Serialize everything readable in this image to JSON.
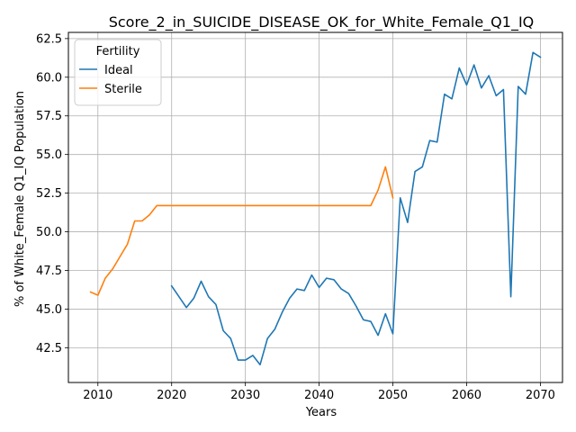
{
  "chart_data": {
    "type": "line",
    "title": "Score_2_in_SUICIDE_DISEASE_OK_for_White_Female_Q1_IQ",
    "xlabel": "Years",
    "ylabel": "% of White_Female Q1_IQ Population",
    "xlim": [
      2006,
      2073
    ],
    "ylim": [
      40.25,
      62.9
    ],
    "xticks": [
      2010,
      2020,
      2030,
      2040,
      2050,
      2060,
      2070
    ],
    "xtick_labels": [
      "2010",
      "2020",
      "2030",
      "2040",
      "2050",
      "2060",
      "2070"
    ],
    "yticks": [
      42.5,
      45.0,
      47.5,
      50.0,
      52.5,
      55.0,
      57.5,
      60.0,
      62.5
    ],
    "ytick_labels": [
      "42.5",
      "45.0",
      "47.5",
      "50.0",
      "52.5",
      "55.0",
      "57.5",
      "60.0",
      "62.5"
    ],
    "grid": true,
    "legend": {
      "title": "Fertility",
      "placement": "top-left"
    },
    "series": [
      {
        "name": "Ideal",
        "color": "#1f77b4",
        "x": [
          2020,
          2021,
          2022,
          2023,
          2024,
          2025,
          2026,
          2027,
          2028,
          2029,
          2030,
          2031,
          2032,
          2033,
          2034,
          2035,
          2036,
          2037,
          2038,
          2039,
          2040,
          2041,
          2042,
          2043,
          2044,
          2045,
          2046,
          2047,
          2048,
          2049,
          2050,
          2051,
          2052,
          2053,
          2054,
          2055,
          2056,
          2057,
          2058,
          2059,
          2060,
          2061,
          2062,
          2063,
          2064,
          2065,
          2066,
          2067,
          2068,
          2069,
          2070
        ],
        "y": [
          46.5,
          45.8,
          45.1,
          45.7,
          46.8,
          45.8,
          45.3,
          43.6,
          43.1,
          41.7,
          41.7,
          42.0,
          41.4,
          43.1,
          43.7,
          44.8,
          45.7,
          46.3,
          46.2,
          47.2,
          46.4,
          47.0,
          46.9,
          46.3,
          46.0,
          45.2,
          44.3,
          44.2,
          43.3,
          44.7,
          43.4,
          52.2,
          50.6,
          53.9,
          54.2,
          55.9,
          55.8,
          58.9,
          58.6,
          60.6,
          59.5,
          60.8,
          59.3,
          60.1,
          58.8,
          59.2,
          45.8,
          59.4,
          58.9,
          61.6,
          61.3
        ]
      },
      {
        "name": "Sterile",
        "color": "#ff7f0e",
        "x": [
          2009,
          2010,
          2011,
          2012,
          2013,
          2014,
          2015,
          2016,
          2017,
          2018,
          2019,
          2020,
          2021,
          2022,
          2023,
          2024,
          2025,
          2026,
          2027,
          2028,
          2029,
          2030,
          2031,
          2032,
          2033,
          2034,
          2035,
          2036,
          2037,
          2038,
          2039,
          2040,
          2041,
          2042,
          2043,
          2044,
          2045,
          2046,
          2047,
          2048,
          2049,
          2050
        ],
        "y": [
          46.1,
          45.9,
          47.0,
          47.6,
          48.4,
          49.2,
          50.7,
          50.7,
          51.1,
          51.7,
          51.7,
          51.7,
          51.7,
          51.7,
          51.7,
          51.7,
          51.7,
          51.7,
          51.7,
          51.7,
          51.7,
          51.7,
          51.7,
          51.7,
          51.7,
          51.7,
          51.7,
          51.7,
          51.7,
          51.7,
          51.7,
          51.7,
          51.7,
          51.7,
          51.7,
          51.7,
          51.7,
          51.7,
          51.7,
          52.7,
          54.2,
          52.2
        ]
      }
    ]
  }
}
